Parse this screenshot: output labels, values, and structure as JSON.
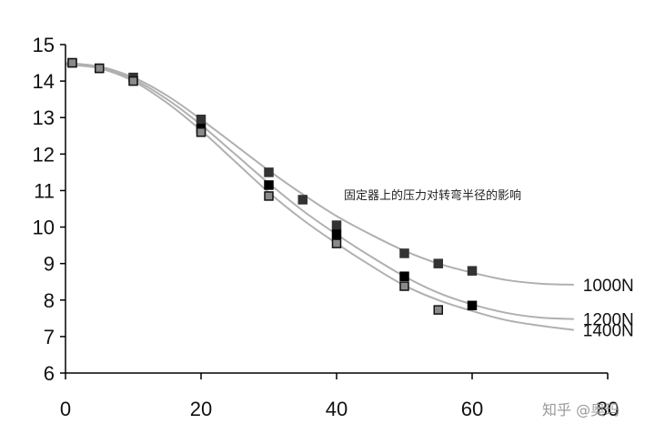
{
  "chart_data": {
    "type": "scatter",
    "title": "",
    "xlabel": "",
    "ylabel": "",
    "xlim": [
      0,
      80
    ],
    "ylim": [
      6,
      15
    ],
    "xticks": [
      0,
      20,
      40,
      60,
      80
    ],
    "yticks": [
      6,
      7,
      8,
      9,
      10,
      11,
      12,
      13,
      14,
      15
    ],
    "grid": false,
    "annotation": "固定器上的压力对转弯半径的影响",
    "watermark": "知乎 @奥玛",
    "colors": {
      "axis": "#000000",
      "curve": "#b0b0b0",
      "marker_1000": "#333333",
      "marker_1200": "#000000",
      "marker_1400": "#8a8a8a",
      "marker_1400_edge": "#111111"
    },
    "series": [
      {
        "name": "1000N",
        "points": [
          [
            1,
            14.5
          ],
          [
            5,
            14.35
          ],
          [
            10,
            14.1
          ],
          [
            20,
            12.95
          ],
          [
            30,
            11.5
          ],
          [
            35,
            10.75
          ],
          [
            40,
            10.05
          ],
          [
            50,
            9.28
          ],
          [
            55,
            9.0
          ],
          [
            60,
            8.8
          ]
        ],
        "curve": [
          [
            0,
            14.5
          ],
          [
            5,
            14.4
          ],
          [
            10,
            14.1
          ],
          [
            15,
            13.6
          ],
          [
            20,
            12.95
          ],
          [
            25,
            12.25
          ],
          [
            30,
            11.55
          ],
          [
            35,
            10.9
          ],
          [
            40,
            10.3
          ],
          [
            45,
            9.8
          ],
          [
            50,
            9.35
          ],
          [
            55,
            9.0
          ],
          [
            60,
            8.75
          ],
          [
            65,
            8.55
          ],
          [
            70,
            8.45
          ],
          [
            75,
            8.42
          ]
        ]
      },
      {
        "name": "1200N",
        "points": [
          [
            20,
            12.7
          ],
          [
            30,
            11.15
          ],
          [
            40,
            9.8
          ],
          [
            50,
            8.65
          ],
          [
            60,
            7.85
          ]
        ],
        "curve": [
          [
            0,
            14.45
          ],
          [
            5,
            14.38
          ],
          [
            10,
            14.05
          ],
          [
            15,
            13.5
          ],
          [
            20,
            12.8
          ],
          [
            25,
            12.0
          ],
          [
            30,
            11.2
          ],
          [
            35,
            10.45
          ],
          [
            40,
            9.8
          ],
          [
            45,
            9.2
          ],
          [
            50,
            8.65
          ],
          [
            55,
            8.2
          ],
          [
            60,
            7.88
          ],
          [
            65,
            7.65
          ],
          [
            70,
            7.52
          ],
          [
            75,
            7.48
          ]
        ]
      },
      {
        "name": "1400N",
        "points": [
          [
            1,
            14.5
          ],
          [
            5,
            14.35
          ],
          [
            10,
            14.0
          ],
          [
            20,
            12.6
          ],
          [
            30,
            10.85
          ],
          [
            40,
            9.55
          ],
          [
            50,
            8.38
          ],
          [
            55,
            7.73
          ]
        ],
        "curve": [
          [
            0,
            14.45
          ],
          [
            5,
            14.35
          ],
          [
            10,
            14.0
          ],
          [
            15,
            13.4
          ],
          [
            20,
            12.65
          ],
          [
            25,
            11.8
          ],
          [
            30,
            10.95
          ],
          [
            35,
            10.2
          ],
          [
            40,
            9.55
          ],
          [
            45,
            8.95
          ],
          [
            50,
            8.4
          ],
          [
            55,
            8.0
          ],
          [
            60,
            7.7
          ],
          [
            65,
            7.45
          ],
          [
            70,
            7.3
          ],
          [
            75,
            7.18
          ]
        ]
      }
    ]
  }
}
